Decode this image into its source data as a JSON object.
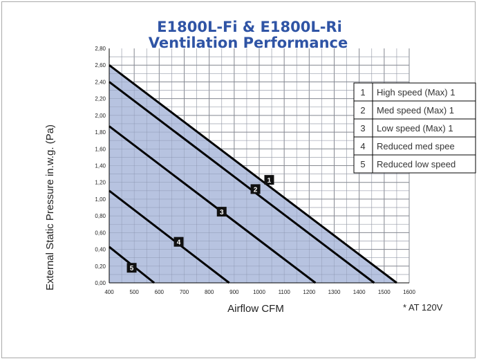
{
  "chart_data": {
    "type": "line",
    "title": "E1800L-Fi & E1800L-Ri",
    "subtitle": "Ventilation Performance",
    "xlabel": "Airflow CFM",
    "ylabel": "External Static Pressure in.w.g. (Pa)",
    "footnote": "* AT 120V",
    "xlim": [
      400,
      1600
    ],
    "ylim": [
      0,
      2.8
    ],
    "x_ticks": [
      "400",
      "500",
      "600",
      "700",
      "800",
      "900",
      "1000",
      "1100",
      "1200",
      "1300",
      "1400",
      "1500",
      "1600"
    ],
    "y_ticks": [
      "0,00",
      "0,20",
      "0,40",
      "0,60",
      "0,80",
      "1,00",
      "1,20",
      "1,40",
      "1,60",
      "1,80",
      "2,00",
      "2,20",
      "2,40",
      "2,60",
      "2,80"
    ],
    "grid": true,
    "fill_color": "#b7c3e0",
    "line_color": "#000000",
    "series": [
      {
        "name": "1",
        "x": [
          400,
          1550
        ],
        "y": [
          2.6,
          0.0
        ],
        "label_at": [
          1040,
          1.23
        ]
      },
      {
        "name": "2",
        "x": [
          400,
          1460
        ],
        "y": [
          2.4,
          0.0
        ],
        "label_at": [
          985,
          1.12
        ]
      },
      {
        "name": "3",
        "x": [
          400,
          1225
        ],
        "y": [
          1.87,
          0.0
        ],
        "label_at": [
          850,
          0.85
        ]
      },
      {
        "name": "4",
        "x": [
          400,
          880
        ],
        "y": [
          1.1,
          0.0
        ],
        "label_at": [
          678,
          0.49
        ]
      },
      {
        "name": "5",
        "x": [
          400,
          580
        ],
        "y": [
          0.43,
          0.0
        ],
        "label_at": [
          490,
          0.18
        ]
      }
    ],
    "legend": {
      "placement": "right",
      "items": [
        {
          "num": "1",
          "text": "High speed (Max) 1"
        },
        {
          "num": "2",
          "text": "Med speed (Max) 1"
        },
        {
          "num": "3",
          "text": "Low speed (Max) 1"
        },
        {
          "num": "4",
          "text": "Reduced med spee"
        },
        {
          "num": "5",
          "text": "Reduced low speed"
        }
      ]
    }
  }
}
